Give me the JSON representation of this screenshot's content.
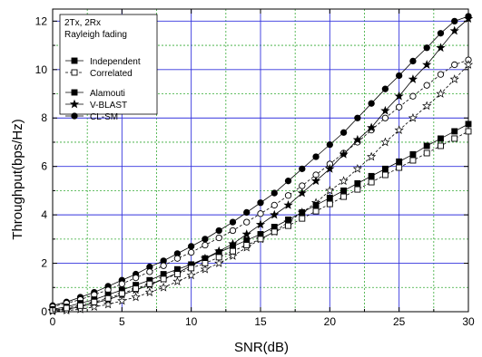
{
  "chart_data": {
    "type": "line",
    "title": "",
    "xlabel": "SNR(dB)",
    "ylabel": "Throughput(bps/Hz)",
    "xlim": [
      0,
      30
    ],
    "ylim": [
      0,
      12.5
    ],
    "x_ticks": [
      0,
      5,
      10,
      15,
      20,
      25,
      30
    ],
    "y_ticks": [
      0,
      2,
      4,
      6,
      8,
      10,
      12
    ],
    "grid": "major solid blue, minor dashed green",
    "legend_position": "top-left",
    "legend": {
      "header": [
        "2Tx, 2Rx",
        "Rayleigh fading"
      ],
      "fill_entries": [
        {
          "label": "Independent",
          "marker": "square",
          "filled": true
        },
        {
          "label": "Correlated",
          "marker": "square",
          "filled": false
        }
      ],
      "scheme_entries": [
        {
          "label": "Alamouti",
          "marker": "square"
        },
        {
          "label": "V-BLAST",
          "marker": "star"
        },
        {
          "label": "CL-SM",
          "marker": "circle"
        }
      ]
    },
    "x": [
      0,
      1,
      2,
      3,
      4,
      5,
      6,
      7,
      8,
      9,
      10,
      11,
      12,
      13,
      14,
      15,
      16,
      17,
      18,
      19,
      20,
      21,
      22,
      23,
      24,
      25,
      26,
      27,
      28,
      29,
      30
    ],
    "series": [
      {
        "scheme": "CL-SM",
        "correlation": "Independent",
        "marker": "circle",
        "filled": true,
        "values": [
          0.25,
          0.4,
          0.6,
          0.8,
          1.05,
          1.3,
          1.55,
          1.85,
          2.1,
          2.4,
          2.7,
          3.0,
          3.35,
          3.7,
          4.1,
          4.5,
          4.9,
          5.4,
          5.9,
          6.4,
          6.9,
          7.4,
          8.0,
          8.6,
          9.2,
          9.75,
          10.35,
          10.9,
          11.5,
          12.0,
          12.2
        ]
      },
      {
        "scheme": "CL-SM",
        "correlation": "Correlated",
        "marker": "circle",
        "filled": false,
        "values": [
          0.2,
          0.35,
          0.5,
          0.7,
          0.9,
          1.15,
          1.4,
          1.65,
          1.9,
          2.2,
          2.45,
          2.75,
          3.05,
          3.35,
          3.7,
          4.05,
          4.4,
          4.8,
          5.2,
          5.65,
          6.1,
          6.55,
          7.0,
          7.5,
          8.0,
          8.45,
          8.9,
          9.35,
          9.8,
          10.2,
          10.4
        ]
      },
      {
        "scheme": "V-BLAST",
        "correlation": "Independent",
        "marker": "star",
        "filled": true,
        "values": [
          0.05,
          0.1,
          0.2,
          0.35,
          0.5,
          0.7,
          0.9,
          1.1,
          1.35,
          1.6,
          1.9,
          2.2,
          2.5,
          2.8,
          3.2,
          3.6,
          4.0,
          4.4,
          4.9,
          5.4,
          5.9,
          6.5,
          7.1,
          7.6,
          8.3,
          8.9,
          9.6,
          10.2,
          10.9,
          11.6,
          12.1
        ]
      },
      {
        "scheme": "V-BLAST",
        "correlation": "Correlated",
        "marker": "star",
        "filled": false,
        "values": [
          0.02,
          0.05,
          0.1,
          0.2,
          0.3,
          0.45,
          0.6,
          0.8,
          1.0,
          1.25,
          1.5,
          1.75,
          2.0,
          2.3,
          2.65,
          3.0,
          3.3,
          3.7,
          4.1,
          4.5,
          5.0,
          5.4,
          5.9,
          6.4,
          7.0,
          7.5,
          8.0,
          8.5,
          9.0,
          9.6,
          10.2
        ]
      },
      {
        "scheme": "Alamouti",
        "correlation": "Independent",
        "marker": "square",
        "filled": true,
        "values": [
          0.1,
          0.2,
          0.35,
          0.5,
          0.7,
          0.9,
          1.1,
          1.3,
          1.55,
          1.75,
          1.95,
          2.2,
          2.45,
          2.7,
          2.95,
          3.2,
          3.5,
          3.8,
          4.1,
          4.4,
          4.7,
          5.0,
          5.3,
          5.6,
          5.9,
          6.2,
          6.5,
          6.85,
          7.15,
          7.45,
          7.75
        ]
      },
      {
        "scheme": "Alamouti",
        "correlation": "Correlated",
        "marker": "square",
        "filled": false,
        "values": [
          0.05,
          0.15,
          0.25,
          0.4,
          0.55,
          0.75,
          0.95,
          1.15,
          1.35,
          1.55,
          1.8,
          2.0,
          2.25,
          2.5,
          2.75,
          3.0,
          3.3,
          3.55,
          3.85,
          4.15,
          4.45,
          4.75,
          5.05,
          5.35,
          5.65,
          5.95,
          6.25,
          6.55,
          6.85,
          7.15,
          7.45
        ]
      }
    ]
  }
}
